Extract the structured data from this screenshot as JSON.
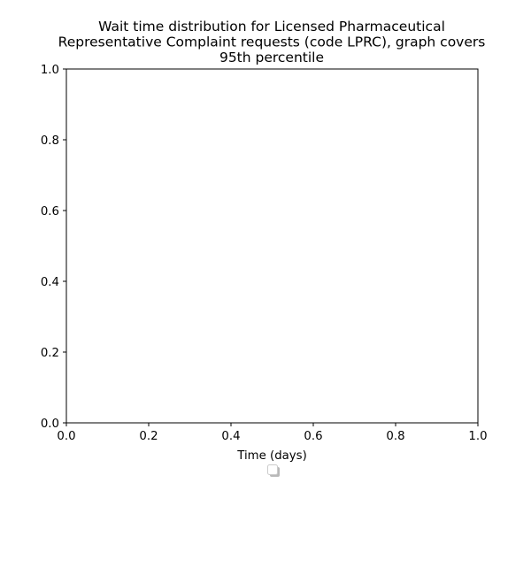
{
  "chart_data": {
    "type": "line",
    "title_lines": [
      "Wait time distribution  for Licensed Pharmaceutical",
      "Representative Complaint  requests (code LPRC), graph covers",
      "95th percentile"
    ],
    "xlabel": "Time (days)",
    "ylabel": "",
    "xlim": [
      0.0,
      1.0
    ],
    "ylim": [
      0.0,
      1.0
    ],
    "x_ticks": [
      0.0,
      0.2,
      0.4,
      0.6,
      0.8,
      1.0
    ],
    "y_ticks": [
      0.0,
      0.2,
      0.4,
      0.6,
      0.8,
      1.0
    ],
    "x_tick_labels": [
      "0.0",
      "0.2",
      "0.4",
      "0.6",
      "0.8",
      "1.0"
    ],
    "y_tick_labels": [
      "0.0",
      "0.2",
      "0.4",
      "0.6",
      "0.8",
      "1.0"
    ],
    "series": [],
    "grid": false,
    "legend": {
      "placement": "below-center",
      "entries": []
    }
  }
}
